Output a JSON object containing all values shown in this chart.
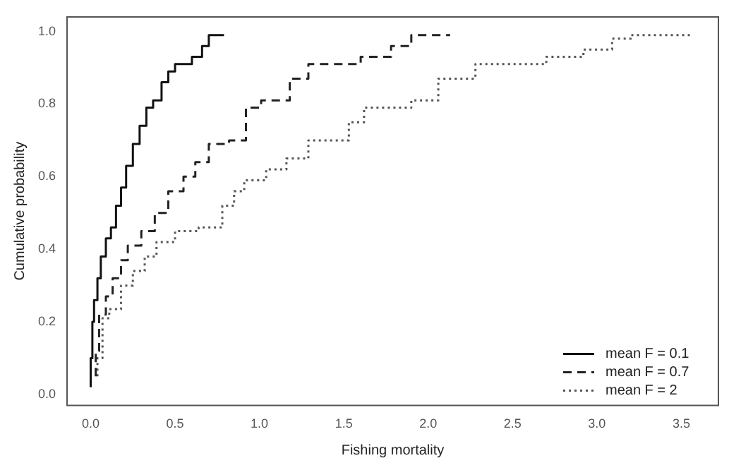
{
  "chart_data": {
    "type": "step",
    "xlabel": "Fishing mortality",
    "ylabel": "Cumulative probability",
    "xlim": [
      -0.14,
      3.72
    ],
    "ylim": [
      -0.03,
      1.04
    ],
    "xticks": [
      {
        "value": 0,
        "label": "0.0"
      },
      {
        "value": 0.5,
        "label": "0.5"
      },
      {
        "value": 1,
        "label": "1.0"
      },
      {
        "value": 1.5,
        "label": "1.5"
      },
      {
        "value": 2,
        "label": "2.0"
      },
      {
        "value": 2.5,
        "label": "2.5"
      },
      {
        "value": 3,
        "label": "3.0"
      },
      {
        "value": 3.5,
        "label": "3.5"
      }
    ],
    "yticks": [
      {
        "value": 0,
        "label": "0.0"
      },
      {
        "value": 0.2,
        "label": "0.2"
      },
      {
        "value": 0.4,
        "label": "0.4"
      },
      {
        "value": 0.6,
        "label": "0.6"
      },
      {
        "value": 0.8,
        "label": "0.8"
      },
      {
        "value": 1,
        "label": "1.0"
      }
    ],
    "grid": false,
    "legend": "bottom right",
    "series": [
      {
        "name": "mean F = 0.1",
        "color": "#111111",
        "line_style": "solid",
        "x": [
          0,
          0.01,
          0.02,
          0.04,
          0.06,
          0.09,
          0.12,
          0.15,
          0.18,
          0.21,
          0.25,
          0.29,
          0.33,
          0.37,
          0.42,
          0.46,
          0.5,
          0.52,
          0.6,
          0.66,
          0.7,
          0.74,
          0.79
        ],
        "values": [
          0.02,
          0.1,
          0.2,
          0.26,
          0.32,
          0.38,
          0.43,
          0.46,
          0.52,
          0.57,
          0.63,
          0.69,
          0.74,
          0.79,
          0.81,
          0.86,
          0.89,
          0.91,
          0.91,
          0.93,
          0.96,
          0.99,
          0.99
        ]
      },
      {
        "name": "mean F = 0.7",
        "color": "#222222",
        "line_style": "dashed",
        "x": [
          0.03,
          0.05,
          0.09,
          0.13,
          0.18,
          0.22,
          0.3,
          0.38,
          0.46,
          0.55,
          0.62,
          0.7,
          0.82,
          0.92,
          1.01,
          1.18,
          1.29,
          1.42,
          1.6,
          1.78,
          1.9,
          1.96,
          2.13
        ],
        "values": [
          0.05,
          0.12,
          0.22,
          0.27,
          0.32,
          0.37,
          0.41,
          0.45,
          0.5,
          0.56,
          0.6,
          0.64,
          0.69,
          0.7,
          0.79,
          0.81,
          0.87,
          0.91,
          0.91,
          0.93,
          0.96,
          0.99,
          0.99
        ]
      },
      {
        "name": "mean F = 2",
        "color": "#555555",
        "line_style": "dotted",
        "x": [
          0.04,
          0.07,
          0.11,
          0.18,
          0.25,
          0.32,
          0.39,
          0.5,
          0.64,
          0.78,
          0.85,
          0.91,
          1.04,
          1.16,
          1.29,
          1.38,
          1.53,
          1.62,
          1.69,
          1.9,
          2.06,
          2.09,
          2.28,
          2.38,
          2.7,
          2.92,
          3.09,
          3.2,
          3.29,
          3.57
        ],
        "values": [
          0.05,
          0.1,
          0.21,
          0.235,
          0.3,
          0.34,
          0.38,
          0.42,
          0.45,
          0.46,
          0.52,
          0.56,
          0.59,
          0.62,
          0.65,
          0.7,
          0.7,
          0.75,
          0.79,
          0.79,
          0.81,
          0.87,
          0.87,
          0.91,
          0.91,
          0.93,
          0.95,
          0.98,
          0.99,
          0.99
        ]
      }
    ]
  }
}
